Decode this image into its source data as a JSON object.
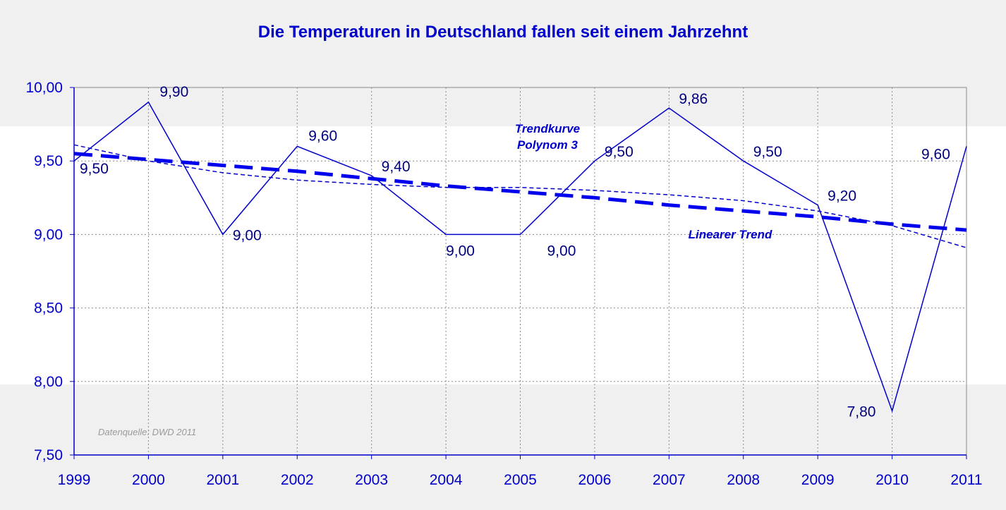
{
  "chart_data": {
    "type": "line",
    "title": "Die Temperaturen in Deutschland fallen seit einem Jahrzehnt",
    "xlabel": "",
    "ylabel": "",
    "x": [
      "1999",
      "2000",
      "2001",
      "2002",
      "2003",
      "2004",
      "2005",
      "2006",
      "2007",
      "2008",
      "2009",
      "2010",
      "2011"
    ],
    "series": [
      {
        "values": [
          9.5,
          9.9,
          9.0,
          9.6,
          9.4,
          9.0,
          9.0,
          9.5,
          9.86,
          9.5,
          9.2,
          7.8,
          9.6
        ],
        "data_labels": [
          "9,50",
          "9,90",
          "9,00",
          "9,60",
          "9,40",
          "9,00",
          "9,00",
          "9,50",
          "9,86",
          "9,50",
          "9,20",
          "7,80",
          "9,60"
        ],
        "color": "#0000cc",
        "style": "solid"
      },
      {
        "name": "Linearer Trend",
        "values": [
          9.55,
          9.51,
          9.47,
          9.43,
          9.38,
          9.33,
          9.29,
          9.25,
          9.2,
          9.16,
          9.12,
          9.07,
          9.03
        ],
        "color": "#0000ee",
        "style": "dashed-thick"
      },
      {
        "name": "Trendkurve Polynom 3",
        "name_lines": [
          "Trendkurve",
          "Polynom 3"
        ],
        "values": [
          9.61,
          9.5,
          9.42,
          9.37,
          9.34,
          9.32,
          9.32,
          9.3,
          9.27,
          9.23,
          9.16,
          9.06,
          8.91
        ],
        "color": "#0000cc",
        "style": "dashed-thin"
      }
    ],
    "ylim": [
      7.5,
      10.0
    ],
    "yticks": [
      10.0,
      9.5,
      9.0,
      8.5,
      8.0,
      7.5
    ],
    "ytick_labels": [
      "10,00",
      "9,50",
      "9,00",
      "8,50",
      "8,00",
      "7,50"
    ],
    "grid": true,
    "annotation": "Datenquelle: DWD 2011"
  }
}
